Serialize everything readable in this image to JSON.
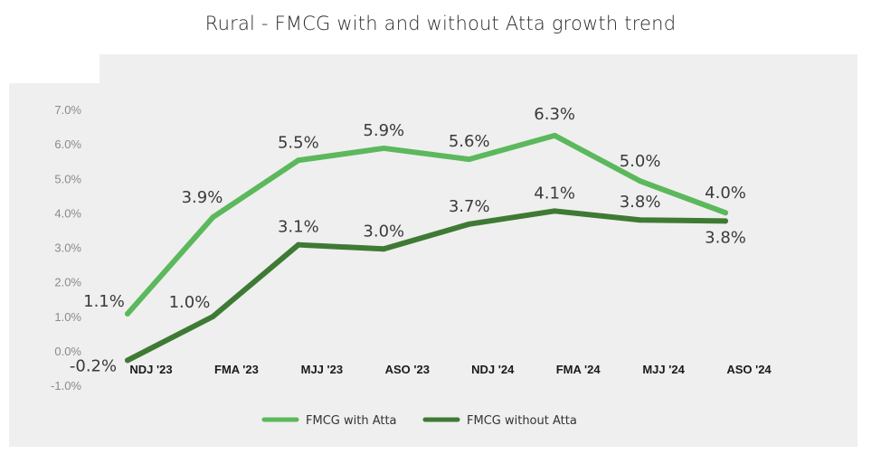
{
  "chart_data": {
    "type": "line",
    "title": "Rural - FMCG with and without Atta growth trend",
    "categories": [
      "NDJ '23",
      "FMA '23",
      "MJJ '23",
      "ASO '23",
      "NDJ '24",
      "FMA '24",
      "MJJ '24",
      "ASO '24"
    ],
    "y_ticks": [
      "7.0%",
      "6.0%",
      "5.0%",
      "4.0%",
      "3.0%",
      "2.0%",
      "1.0%",
      "0.0%",
      "-1.0%"
    ],
    "ylim": [
      -1.0,
      7.0
    ],
    "series": [
      {
        "name": "FMCG with Atta",
        "color": "#5cb85c",
        "values": [
          1.1,
          3.9,
          5.55,
          5.9,
          5.58,
          6.27,
          4.95,
          4.03
        ],
        "labels": [
          "1.1%",
          "3.9%",
          "5.5%",
          "5.9%",
          "5.6%",
          "6.3%",
          "5.0%",
          "4.0%"
        ]
      },
      {
        "name": "FMCG without Atta",
        "color": "#3f7a34",
        "values": [
          -0.25,
          1.02,
          3.1,
          2.98,
          3.7,
          4.08,
          3.82,
          3.79
        ],
        "labels": [
          "-0.2%",
          "1.0%",
          "3.1%",
          "3.0%",
          "3.7%",
          "4.1%",
          "3.8%",
          "3.8%"
        ]
      }
    ],
    "legend_position": "bottom",
    "grid": false
  }
}
